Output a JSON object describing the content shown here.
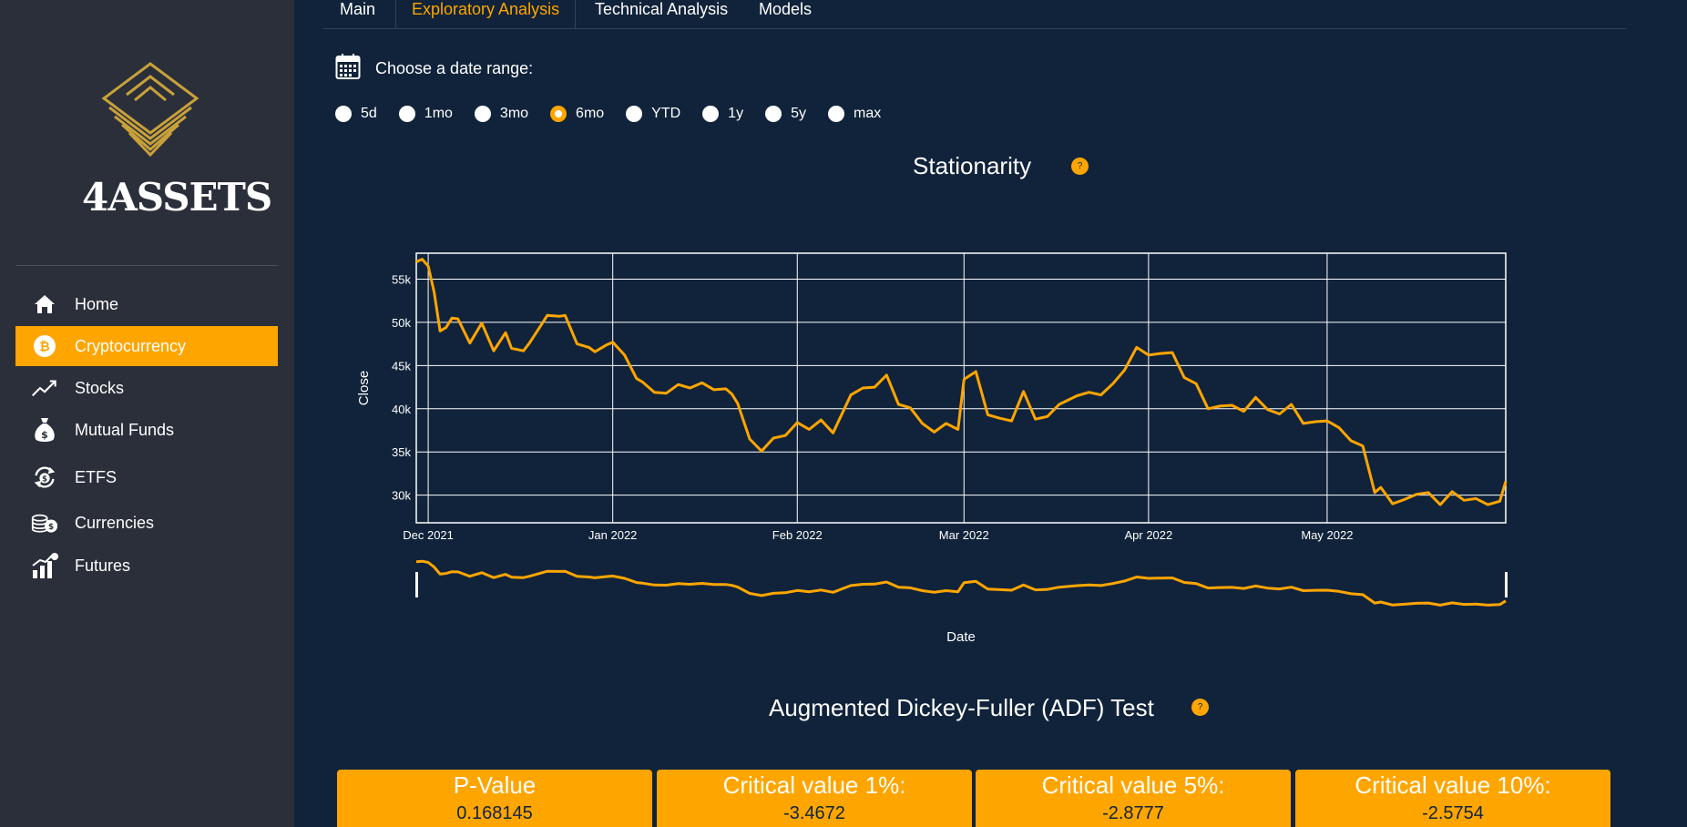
{
  "brand": {
    "name": "4ASSETS"
  },
  "sidebar": {
    "items": [
      {
        "label": "Home",
        "icon": "home-icon",
        "active": false
      },
      {
        "label": "Cryptocurrency",
        "icon": "bitcoin-icon",
        "active": true
      },
      {
        "label": "Stocks",
        "icon": "trending-up-icon",
        "active": false
      },
      {
        "label": "Mutual Funds",
        "icon": "money-bag-icon",
        "active": false
      },
      {
        "label": "ETFS",
        "icon": "exchange-icon",
        "active": false
      },
      {
        "label": "Currencies",
        "icon": "coins-icon",
        "active": false
      },
      {
        "label": "Futures",
        "icon": "chart-bars-icon",
        "active": false
      }
    ]
  },
  "tabs": [
    {
      "label": "Main",
      "active": false
    },
    {
      "label": "Exploratory Analysis",
      "active": true
    },
    {
      "label": "Technical Analysis",
      "active": false
    },
    {
      "label": "Models",
      "active": false
    }
  ],
  "date_range": {
    "label": "Choose a date range:",
    "options": [
      "5d",
      "1mo",
      "3mo",
      "6mo",
      "YTD",
      "1y",
      "5y",
      "max"
    ],
    "selected": "6mo"
  },
  "stationarity": {
    "title": "Stationarity",
    "help": "?"
  },
  "chart_data": {
    "type": "line",
    "xlabel": "Date",
    "ylabel": "Close",
    "x_range": [
      "2021-11-29",
      "2022-05-31"
    ],
    "ylim": [
      26800,
      58000
    ],
    "x_ticks": [
      {
        "date": "2021-12-01",
        "label": "Dec 2021"
      },
      {
        "date": "2022-01-01",
        "label": "Jan 2022"
      },
      {
        "date": "2022-02-01",
        "label": "Feb 2022"
      },
      {
        "date": "2022-03-01",
        "label": "Mar 2022"
      },
      {
        "date": "2022-04-01",
        "label": "Apr 2022"
      },
      {
        "date": "2022-05-01",
        "label": "May 2022"
      }
    ],
    "y_ticks": [
      {
        "value": 30000,
        "label": "30k"
      },
      {
        "value": 35000,
        "label": "35k"
      },
      {
        "value": 40000,
        "label": "40k"
      },
      {
        "value": 45000,
        "label": "45k"
      },
      {
        "value": 50000,
        "label": "50k"
      },
      {
        "value": 55000,
        "label": "55k"
      }
    ],
    "grid": true,
    "range_slider": true,
    "series": [
      {
        "color": "#ffa500",
        "x": [
          "2021-11-29",
          "2021-11-30",
          "2021-12-01",
          "2021-12-02",
          "2021-12-03",
          "2021-12-04",
          "2021-12-05",
          "2021-12-06",
          "2021-12-08",
          "2021-12-10",
          "2021-12-12",
          "2021-12-14",
          "2021-12-15",
          "2021-12-17",
          "2021-12-18",
          "2021-12-20",
          "2021-12-21",
          "2021-12-23",
          "2021-12-24",
          "2021-12-26",
          "2021-12-28",
          "2021-12-29",
          "2021-12-31",
          "2022-01-01",
          "2022-01-03",
          "2022-01-05",
          "2022-01-06",
          "2022-01-08",
          "2022-01-10",
          "2022-01-12",
          "2022-01-14",
          "2022-01-16",
          "2022-01-18",
          "2022-01-20",
          "2022-01-21",
          "2022-01-22",
          "2022-01-24",
          "2022-01-26",
          "2022-01-28",
          "2022-01-30",
          "2022-02-01",
          "2022-02-03",
          "2022-02-05",
          "2022-02-07",
          "2022-02-10",
          "2022-02-12",
          "2022-02-14",
          "2022-02-16",
          "2022-02-18",
          "2022-02-20",
          "2022-02-22",
          "2022-02-24",
          "2022-02-26",
          "2022-02-28",
          "2022-03-01",
          "2022-03-03",
          "2022-03-05",
          "2022-03-07",
          "2022-03-09",
          "2022-03-11",
          "2022-03-13",
          "2022-03-15",
          "2022-03-17",
          "2022-03-20",
          "2022-03-22",
          "2022-03-24",
          "2022-03-26",
          "2022-03-28",
          "2022-03-30",
          "2022-04-01",
          "2022-04-03",
          "2022-04-05",
          "2022-04-07",
          "2022-04-09",
          "2022-04-11",
          "2022-04-13",
          "2022-04-15",
          "2022-04-17",
          "2022-04-19",
          "2022-04-21",
          "2022-04-23",
          "2022-04-25",
          "2022-04-27",
          "2022-04-29",
          "2022-05-01",
          "2022-05-03",
          "2022-05-05",
          "2022-05-07",
          "2022-05-09",
          "2022-05-10",
          "2022-05-12",
          "2022-05-14",
          "2022-05-16",
          "2022-05-18",
          "2022-05-20",
          "2022-05-22",
          "2022-05-24",
          "2022-05-26",
          "2022-05-28",
          "2022-05-30",
          "2022-05-31"
        ],
        "values": [
          57000,
          57300,
          56500,
          53500,
          49000,
          49400,
          50500,
          50400,
          47600,
          49900,
          46700,
          48800,
          47000,
          46700,
          47600,
          49700,
          50800,
          50700,
          50800,
          47500,
          47100,
          46600,
          47400,
          47700,
          46200,
          43500,
          43100,
          41900,
          41800,
          42800,
          42400,
          43000,
          42200,
          42300,
          41700,
          40600,
          36500,
          35100,
          36600,
          36900,
          38400,
          37600,
          38700,
          37200,
          41600,
          42400,
          42500,
          43900,
          40500,
          40100,
          38300,
          37300,
          38300,
          37600,
          43400,
          44300,
          39300,
          38900,
          38600,
          42000,
          38800,
          39100,
          40500,
          41500,
          41900,
          41600,
          42900,
          44500,
          47100,
          46200,
          46400,
          46500,
          43600,
          42900,
          40000,
          40300,
          40400,
          39700,
          41300,
          39900,
          39400,
          40500,
          38300,
          38500,
          38600,
          37800,
          36300,
          35700,
          30300,
          30900,
          29000,
          29500,
          30100,
          30300,
          28900,
          30400,
          29400,
          29600,
          28900,
          29300,
          31600
        ]
      }
    ]
  },
  "adf": {
    "title": "Augmented Dickey-Fuller (ADF) Test",
    "help": "?",
    "boxes": [
      {
        "label": "P-Value",
        "value": "0.168145"
      },
      {
        "label": "Critical value 1%:",
        "value": "-3.4672"
      },
      {
        "label": "Critical value 5%:",
        "value": "-2.8777"
      },
      {
        "label": "Critical value 10%:",
        "value": "-2.5754"
      }
    ]
  }
}
